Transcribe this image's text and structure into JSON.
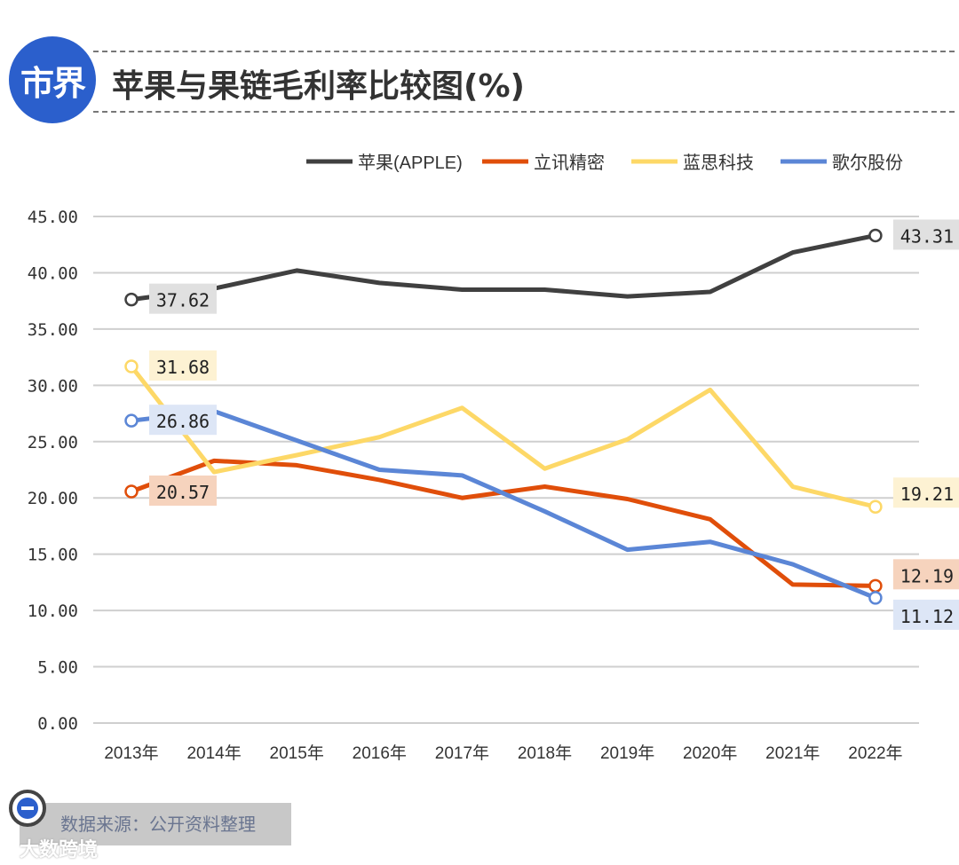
{
  "header": {
    "logo_text": "市界",
    "title": "苹果与果链毛利率比较图(%)"
  },
  "footer": {
    "source": "数据来源：公开资料整理",
    "watermark": "大数跨境"
  },
  "chart_data": {
    "type": "line",
    "title": "苹果与果链毛利率比较图(%)",
    "categories": [
      "2013年",
      "2014年",
      "2015年",
      "2016年",
      "2017年",
      "2018年",
      "2019年",
      "2020年",
      "2021年",
      "2022年"
    ],
    "ylim": [
      0,
      45
    ],
    "yticks": [
      "0.00",
      "5.00",
      "10.00",
      "15.00",
      "20.00",
      "25.00",
      "30.00",
      "35.00",
      "40.00",
      "45.00"
    ],
    "grid": true,
    "legend": "top-right",
    "series": [
      {
        "name": "苹果(APPLE)",
        "color": "#404040",
        "values": [
          37.62,
          38.6,
          40.2,
          39.1,
          38.5,
          38.5,
          37.9,
          38.3,
          41.8,
          43.31
        ],
        "labels": {
          "first": "37.62",
          "last": "43.31"
        },
        "label_bg": "#e0e0e0"
      },
      {
        "name": "立讯精密",
        "color": "#e04e0a",
        "values": [
          20.57,
          23.3,
          22.9,
          21.6,
          20.0,
          21.0,
          19.9,
          18.1,
          12.3,
          12.19
        ],
        "labels": {
          "first": "20.57",
          "last": "12.19"
        },
        "label_bg": "#f6d3bd"
      },
      {
        "name": "蓝思科技",
        "color": "#fdd867",
        "values": [
          31.68,
          22.3,
          23.8,
          25.4,
          28.0,
          22.6,
          25.2,
          29.6,
          21.0,
          19.21
        ],
        "labels": {
          "first": "31.68",
          "last": "19.21"
        },
        "label_bg": "#fdf2d3"
      },
      {
        "name": "歌尔股份",
        "color": "#5b86d6",
        "values": [
          26.86,
          27.7,
          25.1,
          22.5,
          22.0,
          18.8,
          15.4,
          16.1,
          14.1,
          11.12
        ],
        "labels": {
          "first": "26.86",
          "last": "11.12"
        },
        "label_bg": "#dde6f6"
      }
    ]
  }
}
